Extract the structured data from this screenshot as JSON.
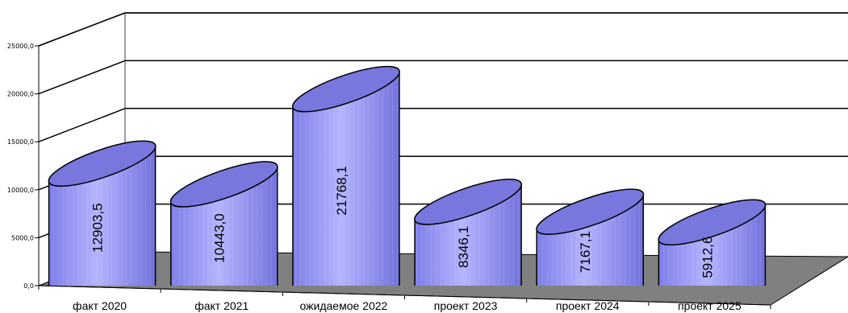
{
  "chart_data": {
    "type": "bar",
    "style": "3d-cylinder",
    "categories": [
      "факт 2020",
      "факт 2021",
      "ожидаемое 2022",
      "проект 2023",
      "проект 2024",
      "проект 2025"
    ],
    "values": [
      12903.5,
      10443.0,
      21768.1,
      8346.1,
      7167.1,
      5912.6
    ],
    "data_labels": [
      "12903,5",
      "10443,0",
      "21768,1",
      "8346,1",
      "7167,1",
      "5912,6"
    ],
    "y_ticks": [
      "0,0",
      "5000,0",
      "10000,0",
      "15000,0",
      "20000,0",
      "25000,0"
    ],
    "ylim": [
      0,
      25000
    ],
    "title": "",
    "xlabel": "",
    "ylabel": "",
    "grid": true,
    "colors": {
      "bar_fill": "#9999ff",
      "bar_top": "#7777dd",
      "floor": "#808080",
      "gridline": "#000000",
      "wall_edge": "#a0a0a0"
    }
  }
}
